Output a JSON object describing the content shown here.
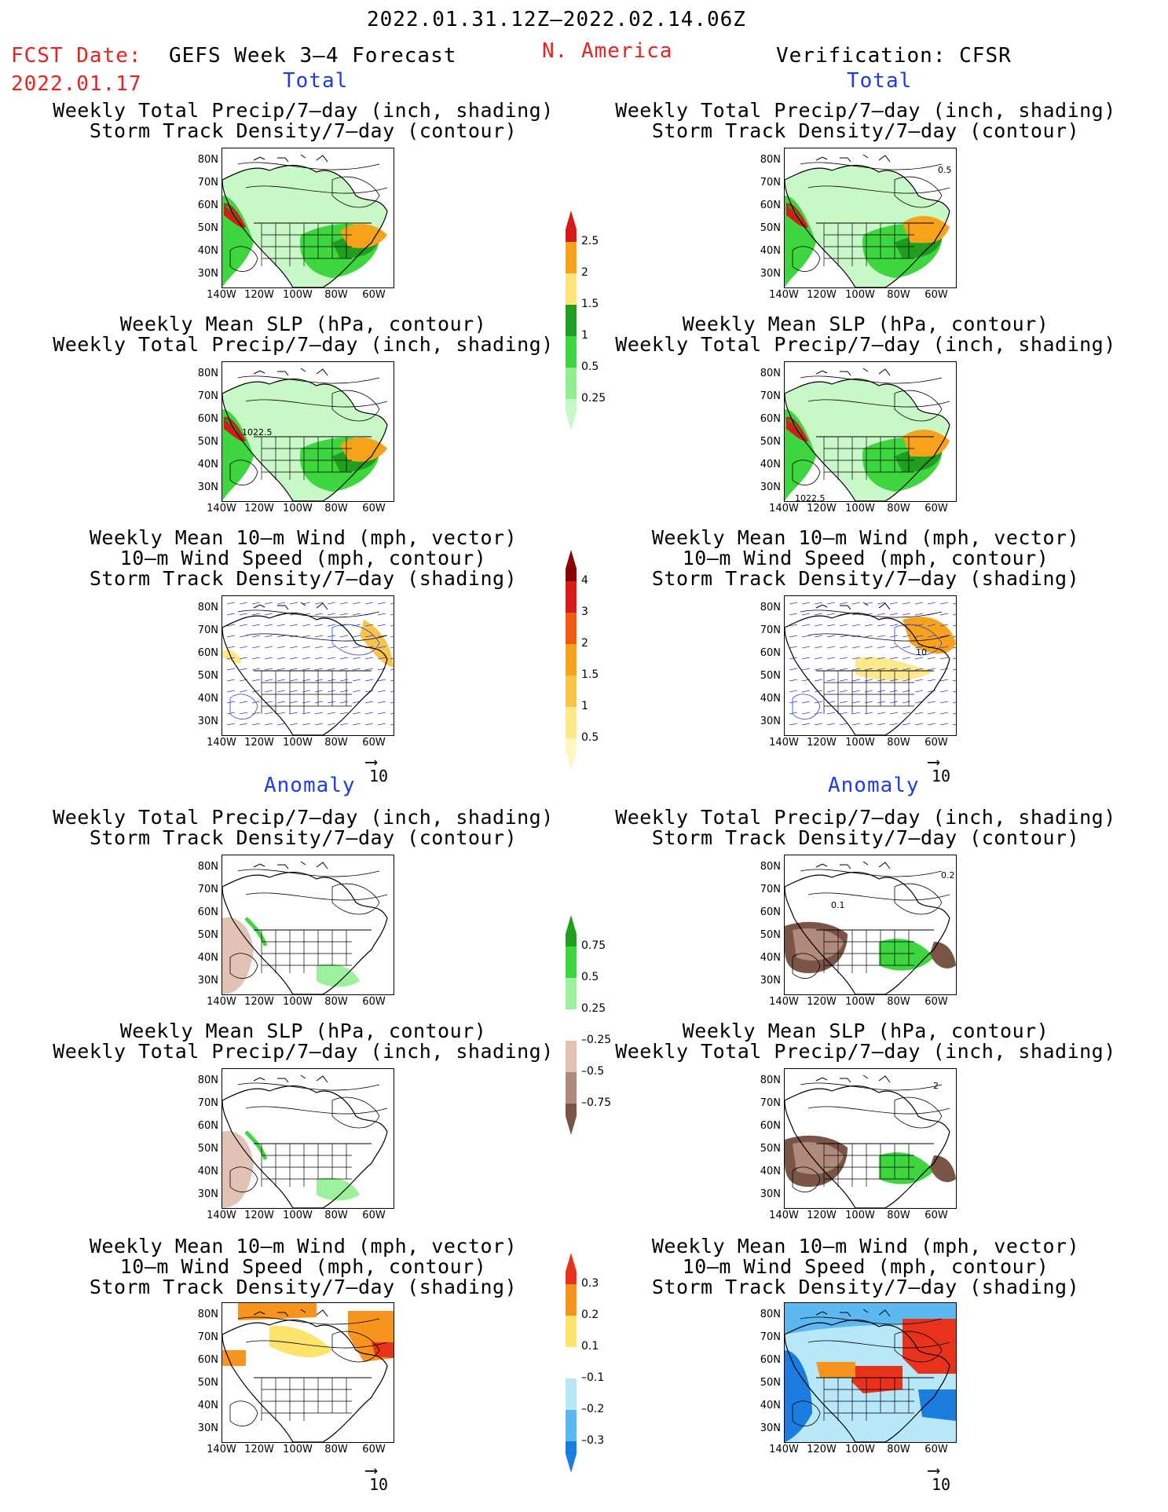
{
  "header": {
    "period": "2022.01.31.12Z–2022.02.14.06Z",
    "fcst_label": "FCST Date:",
    "fcst_date": "2022.01.17",
    "title": "GEFS Week 3–4 Forecast",
    "region": "N. America",
    "verification": "Verification: CFSR"
  },
  "sections": {
    "total": "Total",
    "anomaly": "Anomaly"
  },
  "panel_titles": {
    "precip_storm": [
      "Weekly Total Precip/7–day (inch, shading)",
      "Storm Track Density/7–day (contour)"
    ],
    "slp_precip": [
      "Weekly Mean SLP (hPa, contour)",
      "Weekly Total Precip/7–day (inch, shading)"
    ],
    "wind_storm": [
      "Weekly Mean 10–m Wind (mph, vector)",
      "10–m Wind Speed (mph, contour)",
      "Storm Track Density/7–day (shading)"
    ]
  },
  "axes": {
    "lat_ticks": [
      "80N",
      "70N",
      "60N",
      "50N",
      "40N",
      "30N"
    ],
    "lon_ticks": [
      "140W",
      "120W",
      "100W",
      "80W",
      "60W"
    ]
  },
  "vector_scale": "10",
  "contour_labels": {
    "slp_total_left": "1022.5",
    "slp_total_right": "1022.5",
    "storm_total_right": "0.5",
    "wind_total_right": "10",
    "storm_anom_right_1": "0.2",
    "storm_anom_right_2": "0.1",
    "slp_anom_right": "2"
  },
  "colorbars": {
    "precip_total": {
      "labels": [
        "2.5",
        "2",
        "1.5",
        "1",
        "0.5",
        "0.25"
      ],
      "colors": [
        "#d61a1a",
        "#f7a21b",
        "#ffe47a",
        "#1f9e1f",
        "#3ed63e",
        "#8ff08f",
        "#c8f7c8"
      ]
    },
    "storm_total": {
      "labels": [
        "4",
        "3",
        "2",
        "1.5",
        "1",
        "0.5"
      ],
      "colors": [
        "#8b0000",
        "#d81c1c",
        "#f05a12",
        "#f7a21b",
        "#f9c548",
        "#fde98a",
        "#fff7c2"
      ]
    },
    "precip_anom": {
      "labels": [
        "0.75",
        "0.5",
        "0.25",
        "–0.25",
        "–0.5",
        "–0.75"
      ],
      "colors": [
        "#1f9e1f",
        "#3ed63e",
        "#9df09d",
        "#ffffff",
        "#e3c2b6",
        "#b08b7c",
        "#7a5546"
      ]
    },
    "storm_anom": {
      "labels": [
        "0.3",
        "0.2",
        "0.1",
        "–0.1",
        "–0.2",
        "–0.3"
      ],
      "colors": [
        "#e8321c",
        "#f7941d",
        "#fde36a",
        "#ffffff",
        "#b8e8f8",
        "#5cb8f0",
        "#1c7de0"
      ]
    }
  }
}
